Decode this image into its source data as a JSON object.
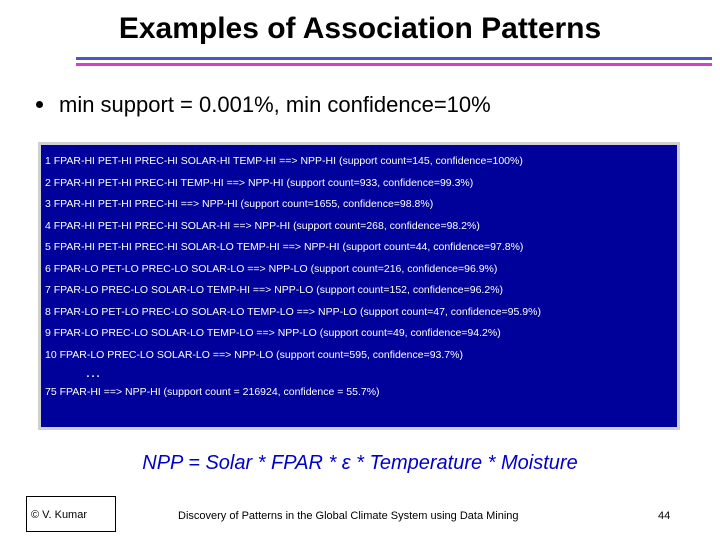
{
  "slide": {
    "title": "Examples of Association Patterns",
    "bullet": "min support = 0.001%, min confidence=10%",
    "rules": [
      "1 FPAR-HI PET-HI PREC-HI SOLAR-HI TEMP-HI ==> NPP-HI (support count=145, confidence=100%)",
      "2 FPAR-HI PET-HI PREC-HI TEMP-HI ==> NPP-HI (support count=933, confidence=99.3%)",
      "3 FPAR-HI PET-HI PREC-HI ==> NPP-HI (support count=1655, confidence=98.8%)",
      "4 FPAR-HI PET-HI PREC-HI SOLAR-HI ==> NPP-HI (support count=268, confidence=98.2%)",
      "5 FPAR-HI PET-HI PREC-HI SOLAR-LO TEMP-HI ==> NPP-HI (support count=44, confidence=97.8%)",
      "6 FPAR-LO PET-LO PREC-LO SOLAR-LO ==> NPP-LO (support count=216, confidence=96.9%)",
      "7 FPAR-LO PREC-LO SOLAR-LO TEMP-HI ==> NPP-LO (support count=152, confidence=96.2%)",
      "8 FPAR-LO PET-LO PREC-LO SOLAR-LO TEMP-LO ==> NPP-LO (support count=47, confidence=95.9%)",
      "9 FPAR-LO PREC-LO SOLAR-LO TEMP-LO ==> NPP-LO (support count=49, confidence=94.2%)",
      "10 FPAR-LO PREC-LO SOLAR-LO ==> NPP-LO (support count=595, confidence=93.7%)"
    ],
    "ellipsis": "…",
    "last_rule": "75 FPAR-HI ==> NPP-HI (support count = 216924, confidence = 55.7%)",
    "formula": "NPP = Solar * FPAR * ε * Temperature * Moisture"
  },
  "footer": {
    "author": "© V. Kumar",
    "subject": "Discovery of Patterns in the Global Climate System using Data Mining",
    "page": "44"
  }
}
